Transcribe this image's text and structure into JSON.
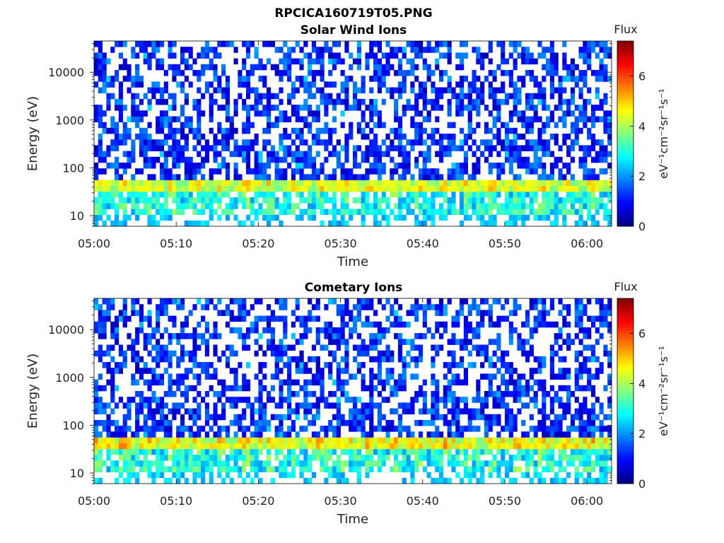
{
  "figure": {
    "title": "RPCICA160719T05.PNG"
  },
  "chart_data": [
    {
      "type": "heatmap",
      "title": "Solar Wind Ions",
      "xlabel": "Time",
      "ylabel": "Energy (eV)",
      "x_range": [
        "05:00",
        "06:03"
      ],
      "x_ticks": [
        "05:00",
        "05:10",
        "05:20",
        "05:30",
        "05:40",
        "05:50",
        "06:00"
      ],
      "y_scale": "log",
      "y_range": [
        6,
        45000
      ],
      "y_ticks": [
        "10",
        "100",
        "1000",
        "10000"
      ],
      "colorbar": {
        "label": "Flux",
        "units": "eV⁻¹cm⁻²sr⁻¹s⁻¹",
        "range": [
          0,
          7.4
        ],
        "ticks": [
          "0",
          "2",
          "4",
          "6"
        ],
        "colormap": "jet"
      },
      "pattern": {
        "low_energy_band_eV": [
          35,
          60
        ],
        "low_energy_band_flux": [
          3.5,
          4.8
        ],
        "high_energy_flux": [
          0.4,
          2.0
        ],
        "sub_band_flux": [
          2.0,
          2.8
        ],
        "sparse_cells": true
      },
      "seed": 11
    },
    {
      "type": "heatmap",
      "title": "Cometary Ions",
      "xlabel": "Time",
      "ylabel": "Energy (eV)",
      "x_range": [
        "05:00",
        "06:03"
      ],
      "x_ticks": [
        "05:00",
        "05:10",
        "05:20",
        "05:30",
        "05:40",
        "05:50",
        "06:00"
      ],
      "y_scale": "log",
      "y_range": [
        6,
        45000
      ],
      "y_ticks": [
        "10",
        "100",
        "1000",
        "10000"
      ],
      "colorbar": {
        "label": "Flux",
        "units": "eV⁻¹cm⁻²sr⁻¹s⁻¹",
        "range": [
          0,
          7.4
        ],
        "ticks": [
          "0",
          "2",
          "4",
          "6"
        ],
        "colormap": "jet"
      },
      "pattern": {
        "low_energy_band_eV": [
          35,
          60
        ],
        "low_energy_band_flux": [
          3.6,
          5.2
        ],
        "high_energy_flux": [
          0.4,
          2.0
        ],
        "sub_band_flux": [
          2.0,
          2.9
        ],
        "sparse_cells": true
      },
      "seed": 29
    }
  ]
}
